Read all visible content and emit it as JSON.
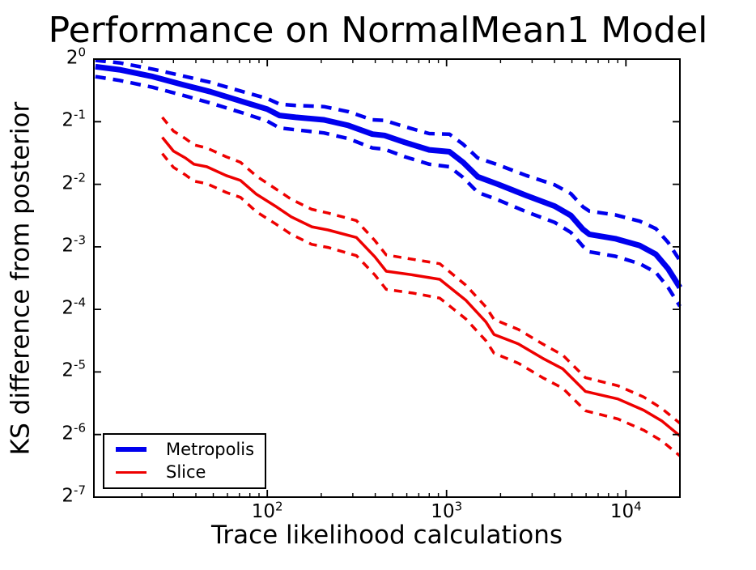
{
  "title": "Performance on NormalMean1 Model",
  "axes": {
    "xlabel": "Trace likelihood calculations",
    "ylabel": "KS difference from posterior",
    "x_tick_labels": [
      {
        "base": "10",
        "exp": "2"
      },
      {
        "base": "10",
        "exp": "3"
      },
      {
        "base": "10",
        "exp": "4"
      }
    ],
    "y_tick_labels": [
      {
        "base": "2",
        "exp": "0"
      },
      {
        "base": "2",
        "exp": "-1"
      },
      {
        "base": "2",
        "exp": "-2"
      },
      {
        "base": "2",
        "exp": "-3"
      },
      {
        "base": "2",
        "exp": "-4"
      },
      {
        "base": "2",
        "exp": "-5"
      },
      {
        "base": "2",
        "exp": "-6"
      },
      {
        "base": "2",
        "exp": "-7"
      }
    ]
  },
  "legend": {
    "items": [
      {
        "label": "Metropolis",
        "color": "#0000ee",
        "line_width": 6
      },
      {
        "label": "Slice",
        "color": "#ee0000",
        "line_width": 3
      }
    ]
  },
  "colors": {
    "metropolis": "#0000ee",
    "slice": "#ee0000",
    "axis": "#000000",
    "background": "#ffffff"
  },
  "chart_data": {
    "type": "line",
    "title": "Performance on NormalMean1 Model",
    "xlabel": "Trace likelihood calculations",
    "ylabel": "KS difference from posterior",
    "x_scale": "log10",
    "y_scale": "log2 (values stored as exponents e, value = 2^e)",
    "x_range": [
      10.8,
      20000
    ],
    "y_top_exp": 0,
    "y_bottom_exp": -7,
    "x_major_ticks": [
      100,
      1000,
      10000
    ],
    "grid": false,
    "legend_position": "lower left",
    "series": [
      {
        "id": "metropolis-upper-band",
        "name": "Metropolis upper band",
        "color": "#0000ee",
        "style": "dashed",
        "width": 4.5,
        "dash": [
          13,
          9
        ],
        "x": [
          11,
          15,
          23,
          34,
          48,
          73,
          100,
          117,
          144,
          207,
          283,
          386,
          451,
          585,
          800,
          1037,
          1236,
          1492,
          1936,
          2786,
          4009,
          4932,
          5754,
          6252,
          8730,
          11940,
          14690,
          17180,
          20000
        ],
        "y_exp": [
          -0.02,
          -0.06,
          -0.16,
          -0.27,
          -0.37,
          -0.52,
          -0.63,
          -0.72,
          -0.74,
          -0.76,
          -0.84,
          -0.97,
          -0.98,
          -1.08,
          -1.19,
          -1.2,
          -1.36,
          -1.58,
          -1.69,
          -1.86,
          -2.01,
          -2.15,
          -2.36,
          -2.43,
          -2.49,
          -2.59,
          -2.71,
          -2.93,
          -3.22
        ]
      },
      {
        "id": "metropolis-median",
        "name": "Metropolis",
        "color": "#0000ee",
        "style": "solid",
        "width": 7,
        "dash": null,
        "x": [
          11,
          15,
          23,
          34,
          48,
          73,
          100,
          117,
          144,
          207,
          283,
          386,
          451,
          585,
          800,
          1037,
          1236,
          1492,
          1936,
          2786,
          4009,
          4932,
          5754,
          6252,
          8730,
          11940,
          14690,
          17180,
          20000
        ],
        "y_exp": [
          -0.12,
          -0.17,
          -0.28,
          -0.41,
          -0.52,
          -0.68,
          -0.8,
          -0.9,
          -0.93,
          -0.97,
          -1.06,
          -1.2,
          -1.22,
          -1.33,
          -1.45,
          -1.48,
          -1.65,
          -1.88,
          -2.0,
          -2.18,
          -2.35,
          -2.5,
          -2.72,
          -2.8,
          -2.87,
          -2.98,
          -3.12,
          -3.35,
          -3.65
        ]
      },
      {
        "id": "metropolis-lower-band",
        "name": "Metropolis lower band",
        "color": "#0000ee",
        "style": "dashed",
        "width": 4.5,
        "dash": [
          13,
          9
        ],
        "x": [
          11,
          15,
          23,
          34,
          48,
          73,
          100,
          117,
          144,
          207,
          283,
          386,
          451,
          585,
          800,
          1037,
          1236,
          1492,
          1936,
          2786,
          4009,
          4932,
          5754,
          6252,
          8730,
          11940,
          14690,
          17180,
          20000
        ],
        "y_exp": [
          -0.28,
          -0.34,
          -0.45,
          -0.58,
          -0.7,
          -0.86,
          -0.99,
          -1.1,
          -1.13,
          -1.18,
          -1.27,
          -1.42,
          -1.44,
          -1.56,
          -1.68,
          -1.72,
          -1.89,
          -2.13,
          -2.25,
          -2.44,
          -2.61,
          -2.77,
          -2.99,
          -3.08,
          -3.15,
          -3.27,
          -3.41,
          -3.65,
          -3.95
        ]
      },
      {
        "id": "slice-upper-band",
        "name": "Slice upper band",
        "color": "#ee0000",
        "style": "dashed",
        "width": 3.5,
        "dash": [
          10,
          8
        ],
        "x": [
          26,
          30,
          35,
          39,
          46,
          59,
          71,
          87,
          111,
          136,
          177,
          218,
          314,
          398,
          461,
          650,
          916,
          1277,
          1656,
          1837,
          2512,
          3428,
          4446,
          5943,
          9016,
          12560,
          15810,
          20000
        ],
        "y_exp": [
          -0.93,
          -1.15,
          -1.27,
          -1.37,
          -1.42,
          -1.56,
          -1.65,
          -1.87,
          -2.07,
          -2.24,
          -2.4,
          -2.46,
          -2.58,
          -2.9,
          -3.13,
          -3.2,
          -3.27,
          -3.61,
          -3.96,
          -4.16,
          -4.32,
          -4.55,
          -4.73,
          -5.09,
          -5.22,
          -5.4,
          -5.58,
          -5.82
        ]
      },
      {
        "id": "slice-median",
        "name": "Slice",
        "color": "#ee0000",
        "style": "solid",
        "width": 3.5,
        "dash": null,
        "x": [
          26,
          30,
          35,
          39,
          46,
          59,
          71,
          87,
          111,
          136,
          177,
          218,
          314,
          398,
          461,
          650,
          916,
          1277,
          1656,
          1837,
          2512,
          3428,
          4446,
          5943,
          9016,
          12560,
          15810,
          20000
        ],
        "y_exp": [
          -1.25,
          -1.47,
          -1.58,
          -1.68,
          -1.72,
          -1.86,
          -1.94,
          -2.16,
          -2.35,
          -2.52,
          -2.68,
          -2.73,
          -2.85,
          -3.16,
          -3.39,
          -3.45,
          -3.52,
          -3.85,
          -4.2,
          -4.4,
          -4.55,
          -4.78,
          -4.95,
          -5.31,
          -5.43,
          -5.61,
          -5.78,
          -6.02
        ]
      },
      {
        "id": "slice-lower-band",
        "name": "Slice lower band",
        "color": "#ee0000",
        "style": "dashed",
        "width": 3.5,
        "dash": [
          10,
          8
        ],
        "x": [
          26,
          30,
          35,
          39,
          46,
          59,
          71,
          87,
          111,
          136,
          177,
          218,
          314,
          398,
          461,
          650,
          916,
          1277,
          1656,
          1837,
          2512,
          3428,
          4446,
          5943,
          9016,
          12560,
          15810,
          20000
        ],
        "y_exp": [
          -1.51,
          -1.73,
          -1.85,
          -1.95,
          -1.99,
          -2.13,
          -2.21,
          -2.44,
          -2.63,
          -2.8,
          -2.96,
          -3.01,
          -3.14,
          -3.45,
          -3.68,
          -3.74,
          -3.82,
          -4.15,
          -4.5,
          -4.7,
          -4.86,
          -5.09,
          -5.26,
          -5.62,
          -5.75,
          -5.93,
          -6.1,
          -6.34
        ]
      }
    ]
  }
}
